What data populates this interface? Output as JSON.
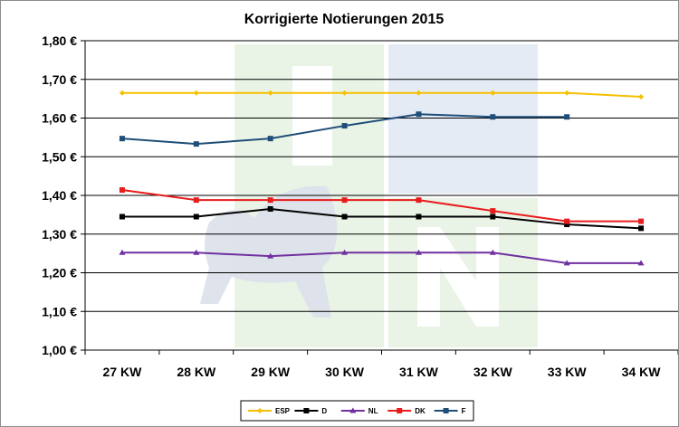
{
  "chart_data": {
    "type": "line",
    "title": "Korrigierte Notierungen 2015",
    "categories": [
      "27 KW",
      "28 KW",
      "29 KW",
      "30 KW",
      "31 KW",
      "32 KW",
      "33 KW",
      "34 KW"
    ],
    "ylim": [
      1.0,
      1.8
    ],
    "yticks": [
      "1,00 €",
      "1,10 €",
      "1,20 €",
      "1,30 €",
      "1,40 €",
      "1,50 €",
      "1,60 €",
      "1,70 €",
      "1,80 €"
    ],
    "grid": true,
    "legend_position": "bottom",
    "series": [
      {
        "name": "ESP",
        "color": "#f5c000",
        "marker": "diamond",
        "values": [
          1.665,
          1.665,
          1.665,
          1.665,
          1.665,
          1.665,
          1.665,
          1.655
        ]
      },
      {
        "name": "D",
        "color": "#000000",
        "marker": "square",
        "values": [
          1.345,
          1.345,
          1.365,
          1.345,
          1.345,
          1.345,
          1.325,
          1.315
        ]
      },
      {
        "name": "NL",
        "color": "#7030a0",
        "marker": "triangle",
        "values": [
          1.252,
          1.252,
          1.243,
          1.252,
          1.252,
          1.252,
          1.225,
          1.225
        ]
      },
      {
        "name": "DK",
        "color": "#e81c1c",
        "marker": "square",
        "values": [
          1.414,
          1.388,
          1.388,
          1.388,
          1.388,
          1.36,
          1.333,
          1.333
        ]
      },
      {
        "name": "F",
        "color": "#1f4e79",
        "marker": "square",
        "values": [
          1.547,
          1.533,
          1.547,
          1.58,
          1.61,
          1.603,
          1.603,
          null
        ]
      }
    ]
  }
}
